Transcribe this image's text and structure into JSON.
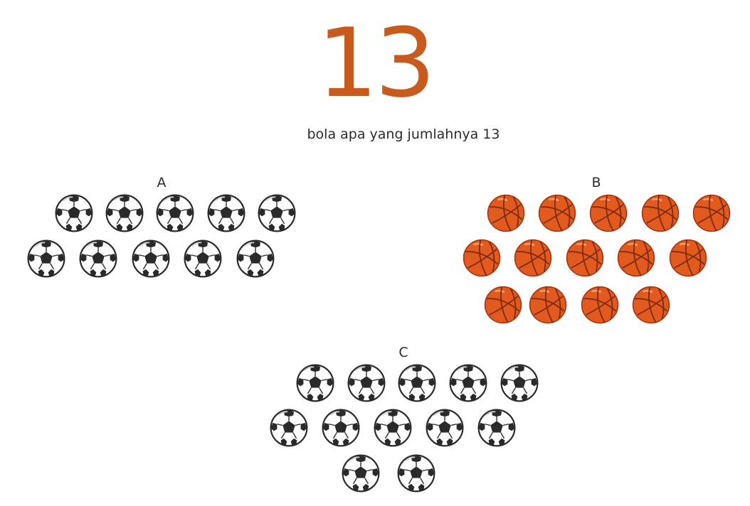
{
  "number": "13",
  "question": "bola apa yang jumlahnya 13",
  "groups": [
    {
      "label": "A",
      "ball_type": "soccer-ball",
      "count": 10
    },
    {
      "label": "B",
      "ball_type": "basketball",
      "count": 14
    },
    {
      "label": "C",
      "ball_type": "soccer-ball",
      "count": 12
    }
  ],
  "colors": {
    "number": "#C75B1D",
    "basketball": "#E35A1F",
    "soccer_dark": "#2a2a2a"
  }
}
